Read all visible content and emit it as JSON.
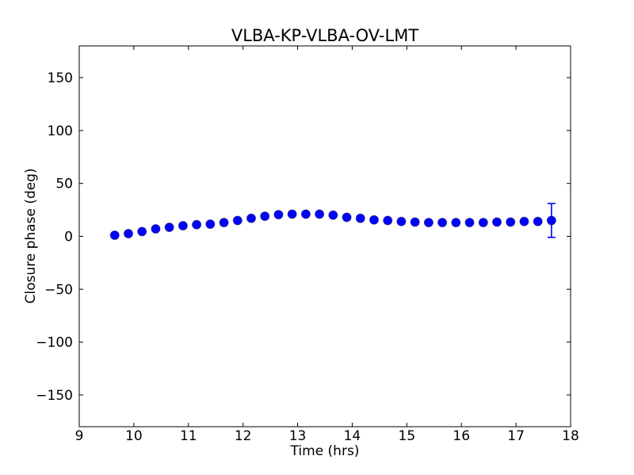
{
  "figure": {
    "background_color": "#ffffff",
    "frame_color": "#000000",
    "text_color": "#000000"
  },
  "chart_data": {
    "type": "scatter",
    "title": "VLBA-KP-VLBA-OV-LMT",
    "xlabel": "Time (hrs)",
    "ylabel": "Closure phase (deg)",
    "xlim": [
      9,
      18
    ],
    "ylim": [
      -180,
      180
    ],
    "xticks": [
      9,
      10,
      11,
      12,
      13,
      14,
      15,
      16,
      17,
      18
    ],
    "yticks": [
      150,
      100,
      50,
      0,
      -50,
      -100,
      -150
    ],
    "grid": false,
    "legend": null,
    "marker_color": "#0000ff",
    "marker_edge_color": "#000040",
    "series": [
      {
        "name": "closure-phase",
        "x": [
          9.65,
          9.9,
          10.15,
          10.4,
          10.65,
          10.9,
          11.15,
          11.4,
          11.65,
          11.9,
          12.15,
          12.4,
          12.65,
          12.9,
          13.15,
          13.4,
          13.65,
          13.9,
          14.15,
          14.4,
          14.65,
          14.9,
          15.15,
          15.4,
          15.65,
          15.9,
          16.15,
          16.4,
          16.65,
          16.9,
          17.15,
          17.4,
          17.65
        ],
        "y": [
          1,
          2.5,
          4.5,
          7,
          8.5,
          10,
          11,
          11.5,
          13,
          15,
          17,
          19,
          20.5,
          21,
          21,
          21,
          20,
          18,
          17,
          15.5,
          15,
          14,
          13.5,
          13,
          13,
          13,
          13,
          13,
          13.5,
          13.5,
          14,
          14,
          15
        ]
      }
    ],
    "error_bars": [
      {
        "series": 0,
        "index": 32,
        "yerr": 16
      }
    ]
  }
}
